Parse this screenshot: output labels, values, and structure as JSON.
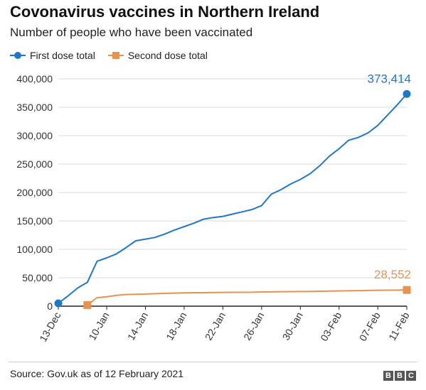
{
  "header": {
    "title": "Covonavirus vaccines in Northern Ireland",
    "subtitle": "Number of people who have been vaccinated"
  },
  "legend": [
    {
      "label": "First dose total",
      "color": "#1f77c9",
      "marker": "circle"
    },
    {
      "label": "Second dose total",
      "color": "#e8924f",
      "marker": "square"
    }
  ],
  "footer": {
    "source": "Source: Gov.uk as of 12 February 2021",
    "logo_letters": [
      "B",
      "B",
      "C"
    ]
  },
  "chart_data": {
    "type": "line",
    "title": "Covonavirus vaccines in Northern Ireland",
    "subtitle": "Number of people who have been vaccinated",
    "xlabel": "",
    "ylabel": "",
    "ylim": [
      0,
      400000
    ],
    "y_ticks": [
      "0",
      "50,000",
      "100,000",
      "150,000",
      "200,000",
      "250,000",
      "300,000",
      "350,000",
      "400,000"
    ],
    "x_ticks": [
      "13-Dec",
      "10-Jan",
      "14-Jan",
      "18-Jan",
      "22-Jan",
      "26-Jan",
      "30-Jan",
      "03-Feb",
      "07-Feb",
      "11-Feb"
    ],
    "grid": true,
    "legend_position": "top-left",
    "series": [
      {
        "name": "First dose total",
        "color": "#1f77c9",
        "marker": "circle",
        "end_label": "373,414",
        "points": [
          [
            "13-Dec",
            5000
          ],
          [
            "",
            18000
          ],
          [
            "",
            32000
          ],
          [
            "",
            42000
          ],
          [
            "",
            79000
          ],
          [
            "10-Jan",
            85000
          ],
          [
            "",
            92000
          ],
          [
            "",
            103000
          ],
          [
            "",
            115000
          ],
          [
            "14-Jan",
            118000
          ],
          [
            "",
            121000
          ],
          [
            "",
            127000
          ],
          [
            "",
            134000
          ],
          [
            "18-Jan",
            140000
          ],
          [
            "",
            146000
          ],
          [
            "",
            153000
          ],
          [
            "",
            156000
          ],
          [
            "22-Jan",
            158000
          ],
          [
            "",
            162000
          ],
          [
            "",
            166000
          ],
          [
            "",
            170000
          ],
          [
            "26-Jan",
            177000
          ],
          [
            "",
            197000
          ],
          [
            "",
            205000
          ],
          [
            "",
            215000
          ],
          [
            "30-Jan",
            223000
          ],
          [
            "",
            233000
          ],
          [
            "",
            247000
          ],
          [
            "",
            264000
          ],
          [
            "03-Feb",
            277000
          ],
          [
            "",
            292000
          ],
          [
            "",
            297000
          ],
          [
            "",
            305000
          ],
          [
            "07-Feb",
            318000
          ],
          [
            "",
            336000
          ],
          [
            "",
            354000
          ],
          [
            "11-Feb",
            373414
          ]
        ]
      },
      {
        "name": "Second dose total",
        "color": "#e8924f",
        "marker": "square",
        "end_label": "28,552",
        "points": [
          [
            "",
            2000
          ],
          [
            "10-Jan",
            15000
          ],
          [
            "",
            16500
          ],
          [
            "",
            19000
          ],
          [
            "",
            20500
          ],
          [
            "14-Jan",
            21000
          ],
          [
            "",
            21200
          ],
          [
            "",
            22000
          ],
          [
            "",
            22500
          ],
          [
            "18-Jan",
            23000
          ],
          [
            "",
            23500
          ],
          [
            "",
            23700
          ],
          [
            "",
            23800
          ],
          [
            "22-Jan",
            24000
          ],
          [
            "",
            24200
          ],
          [
            "",
            24300
          ],
          [
            "",
            24400
          ],
          [
            "26-Jan",
            24500
          ],
          [
            "",
            25000
          ],
          [
            "",
            25200
          ],
          [
            "",
            25400
          ],
          [
            "30-Jan",
            25600
          ],
          [
            "",
            25800
          ],
          [
            "",
            26000
          ],
          [
            "",
            26200
          ],
          [
            "03-Feb",
            26500
          ],
          [
            "",
            26800
          ],
          [
            "",
            27000
          ],
          [
            "",
            27300
          ],
          [
            "07-Feb",
            27600
          ],
          [
            "",
            27900
          ],
          [
            "",
            28100
          ],
          [
            "",
            28300
          ],
          [
            "11-Feb",
            28552
          ]
        ]
      }
    ]
  }
}
